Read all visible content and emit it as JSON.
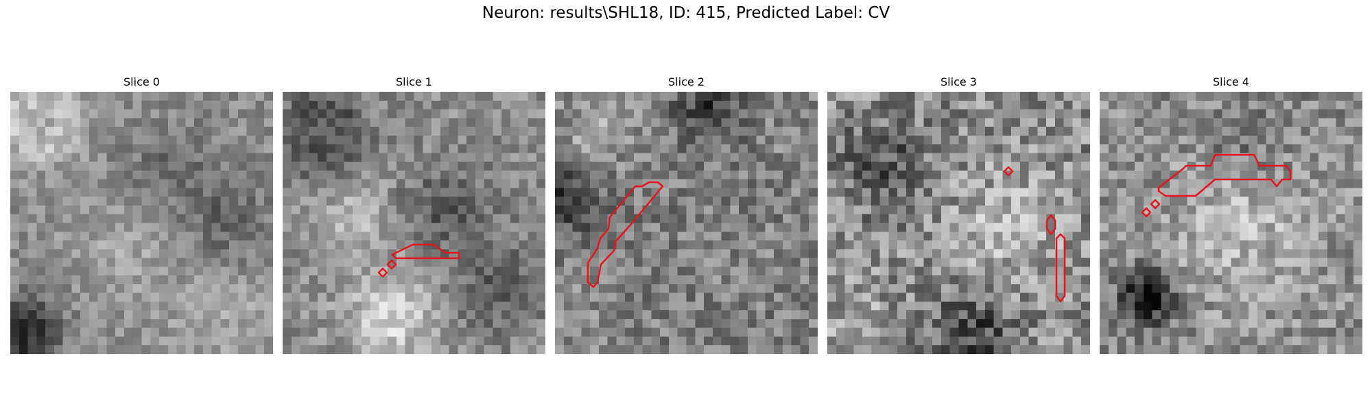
{
  "figure": {
    "title": "Neuron: results\\SHL18, ID: 415, Predicted Label: CV"
  },
  "panels": [
    {
      "title": "Slice 0"
    },
    {
      "title": "Slice 1"
    },
    {
      "title": "Slice 2"
    },
    {
      "title": "Slice 3"
    },
    {
      "title": "Slice 4"
    }
  ],
  "style": {
    "contour_color": "#e8141c",
    "colormap": "grayscale"
  }
}
